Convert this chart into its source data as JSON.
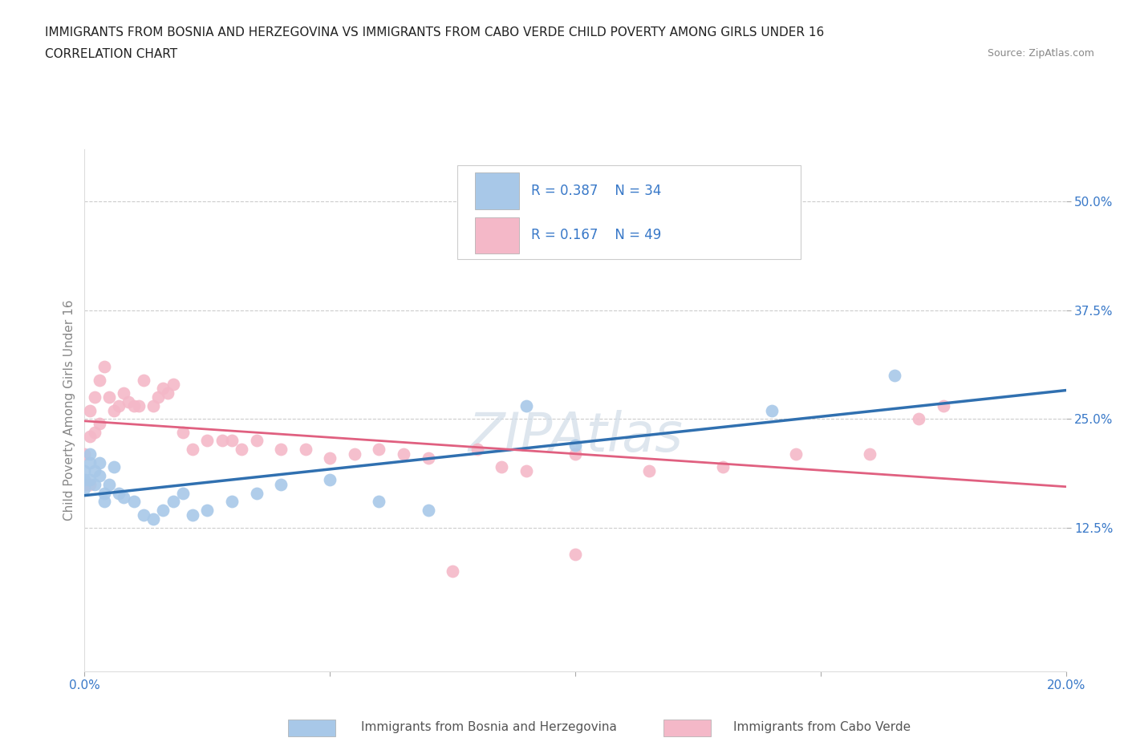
{
  "title_line1": "IMMIGRANTS FROM BOSNIA AND HERZEGOVINA VS IMMIGRANTS FROM CABO VERDE CHILD POVERTY AMONG GIRLS UNDER 16",
  "title_line2": "CORRELATION CHART",
  "source_text": "Source: ZipAtlas.com",
  "ylabel": "Child Poverty Among Girls Under 16",
  "watermark": "ZIPAtlas",
  "xlim": [
    0.0,
    0.2
  ],
  "ylim": [
    -0.04,
    0.56
  ],
  "ytick_labels": [
    "12.5%",
    "25.0%",
    "37.5%",
    "50.0%"
  ],
  "ytick_values": [
    0.125,
    0.25,
    0.375,
    0.5
  ],
  "color_blue": "#a8c8e8",
  "color_pink": "#f4b8c8",
  "color_blue_line": "#3070b0",
  "color_pink_line": "#e06080",
  "color_text_blue": "#3878c8",
  "background_color": "#ffffff",
  "bosnia_x": [
    0.0,
    0.0,
    0.0,
    0.001,
    0.001,
    0.001,
    0.002,
    0.002,
    0.003,
    0.003,
    0.004,
    0.004,
    0.005,
    0.006,
    0.007,
    0.008,
    0.01,
    0.012,
    0.014,
    0.016,
    0.018,
    0.02,
    0.022,
    0.025,
    0.03,
    0.035,
    0.04,
    0.05,
    0.06,
    0.07,
    0.09,
    0.1,
    0.14,
    0.165
  ],
  "bosnia_y": [
    0.19,
    0.18,
    0.17,
    0.21,
    0.2,
    0.18,
    0.19,
    0.175,
    0.2,
    0.185,
    0.165,
    0.155,
    0.175,
    0.195,
    0.165,
    0.16,
    0.155,
    0.14,
    0.135,
    0.145,
    0.155,
    0.165,
    0.14,
    0.145,
    0.155,
    0.165,
    0.175,
    0.18,
    0.155,
    0.145,
    0.265,
    0.22,
    0.26,
    0.3
  ],
  "caboverde_x": [
    0.0,
    0.0,
    0.001,
    0.001,
    0.001,
    0.002,
    0.002,
    0.003,
    0.003,
    0.004,
    0.005,
    0.006,
    0.007,
    0.008,
    0.009,
    0.01,
    0.011,
    0.012,
    0.014,
    0.015,
    0.016,
    0.017,
    0.018,
    0.02,
    0.022,
    0.025,
    0.028,
    0.03,
    0.032,
    0.035,
    0.04,
    0.045,
    0.05,
    0.055,
    0.06,
    0.065,
    0.07,
    0.08,
    0.085,
    0.09,
    0.1,
    0.115,
    0.13,
    0.145,
    0.16,
    0.17,
    0.175,
    0.1,
    0.075
  ],
  "caboverde_y": [
    0.21,
    0.175,
    0.26,
    0.23,
    0.175,
    0.275,
    0.235,
    0.295,
    0.245,
    0.31,
    0.275,
    0.26,
    0.265,
    0.28,
    0.27,
    0.265,
    0.265,
    0.295,
    0.265,
    0.275,
    0.285,
    0.28,
    0.29,
    0.235,
    0.215,
    0.225,
    0.225,
    0.225,
    0.215,
    0.225,
    0.215,
    0.215,
    0.205,
    0.21,
    0.215,
    0.21,
    0.205,
    0.215,
    0.195,
    0.19,
    0.21,
    0.19,
    0.195,
    0.21,
    0.21,
    0.25,
    0.265,
    0.095,
    0.075
  ]
}
